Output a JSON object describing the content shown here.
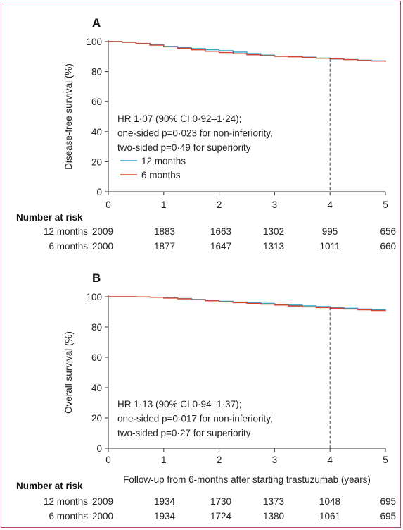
{
  "chart_data": [
    {
      "panel": "A",
      "type": "line",
      "ylabel": "Disease-free survival (%)",
      "xlabel": "",
      "xlim": [
        0,
        5
      ],
      "ylim": [
        0,
        100
      ],
      "xticks": [
        "0",
        "1",
        "2",
        "3",
        "4",
        "5"
      ],
      "yticks": [
        "0",
        "20",
        "40",
        "60",
        "80",
        "100"
      ],
      "reference_line_x": 4,
      "annotation": [
        "HR 1·07 (90% CI 0·92–1·24);",
        "one-sided p=0·023 for non-inferiority,",
        "two-sided p=0·49 for superiority"
      ],
      "legend": [
        {
          "name": "12 months",
          "color": "#2aa6c9"
        },
        {
          "name": "6 months",
          "color": "#d6432e"
        }
      ],
      "series": [
        {
          "name": "12 months",
          "color": "#2aa6c9",
          "x": [
            0,
            0.25,
            0.5,
            0.75,
            1,
            1.25,
            1.5,
            1.75,
            2,
            2.25,
            2.5,
            2.75,
            3,
            3.25,
            3.5,
            3.75,
            4,
            4.25,
            4.5,
            4.75,
            5
          ],
          "y": [
            100,
            99.6,
            98.8,
            97.8,
            96.8,
            96.0,
            95.3,
            94.6,
            93.9,
            93.0,
            92.0,
            91.0,
            90.3,
            90.0,
            89.6,
            89.0,
            88.4,
            88.0,
            87.6,
            87.2,
            86.9
          ]
        },
        {
          "name": "6 months",
          "color": "#d6432e",
          "x": [
            0,
            0.25,
            0.5,
            0.75,
            1,
            1.25,
            1.5,
            1.75,
            2,
            2.25,
            2.5,
            2.75,
            3,
            3.25,
            3.5,
            3.75,
            4,
            4.25,
            4.5,
            4.75,
            5
          ],
          "y": [
            100,
            99.5,
            98.7,
            97.6,
            96.5,
            95.6,
            94.5,
            93.5,
            92.7,
            91.9,
            91.2,
            90.6,
            90.1,
            89.8,
            89.4,
            88.9,
            88.5,
            88.0,
            87.4,
            87.0,
            86.5
          ]
        }
      ],
      "risk_table": {
        "title": "Number at risk",
        "rows": [
          {
            "label": "12 months",
            "values": [
              "2009",
              "1883",
              "1663",
              "1302",
              "995",
              "656"
            ]
          },
          {
            "label": "6 months",
            "values": [
              "2000",
              "1877",
              "1647",
              "1313",
              "1011",
              "660"
            ]
          }
        ]
      }
    },
    {
      "panel": "B",
      "type": "line",
      "ylabel": "Overall survival (%)",
      "xlabel": "Follow-up from 6-months after starting trastuzumab (years)",
      "xlim": [
        0,
        5
      ],
      "ylim": [
        0,
        100
      ],
      "xticks": [
        "0",
        "1",
        "2",
        "3",
        "4",
        "5"
      ],
      "yticks": [
        "0",
        "20",
        "40",
        "60",
        "80",
        "100"
      ],
      "reference_line_x": 4,
      "annotation": [
        "HR 1·13 (90% CI 0·94–1·37);",
        "one-sided p=0·017 for non-inferiority,",
        "two-sided p=0·27 for superiority"
      ],
      "series": [
        {
          "name": "12 months",
          "color": "#2aa6c9",
          "x": [
            0,
            0.25,
            0.5,
            0.75,
            1,
            1.25,
            1.5,
            1.75,
            2,
            2.25,
            2.5,
            2.75,
            3,
            3.25,
            3.5,
            3.75,
            4,
            4.25,
            4.5,
            4.75,
            5
          ],
          "y": [
            100,
            100,
            99.9,
            99.7,
            99.2,
            98.8,
            98.2,
            97.6,
            97.0,
            96.5,
            96.0,
            95.6,
            95.0,
            94.5,
            94.0,
            93.5,
            92.9,
            92.4,
            91.9,
            91.5,
            91.1
          ]
        },
        {
          "name": "6 months",
          "color": "#d6432e",
          "x": [
            0,
            0.25,
            0.5,
            0.75,
            1,
            1.25,
            1.5,
            1.75,
            2,
            2.25,
            2.5,
            2.75,
            3,
            3.25,
            3.5,
            3.75,
            4,
            4.25,
            4.5,
            4.75,
            5
          ],
          "y": [
            100,
            100,
            99.9,
            99.6,
            99.1,
            98.6,
            98.0,
            97.3,
            96.6,
            96.1,
            95.6,
            95.1,
            94.5,
            93.9,
            93.3,
            92.8,
            92.4,
            91.9,
            91.4,
            90.9,
            90.5
          ]
        }
      ],
      "risk_table": {
        "title": "Number at risk",
        "rows": [
          {
            "label": "12 months",
            "values": [
              "2009",
              "1934",
              "1730",
              "1373",
              "1048",
              "695"
            ]
          },
          {
            "label": "6 months",
            "values": [
              "2000",
              "1934",
              "1724",
              "1380",
              "1061",
              "695"
            ]
          }
        ]
      }
    }
  ]
}
